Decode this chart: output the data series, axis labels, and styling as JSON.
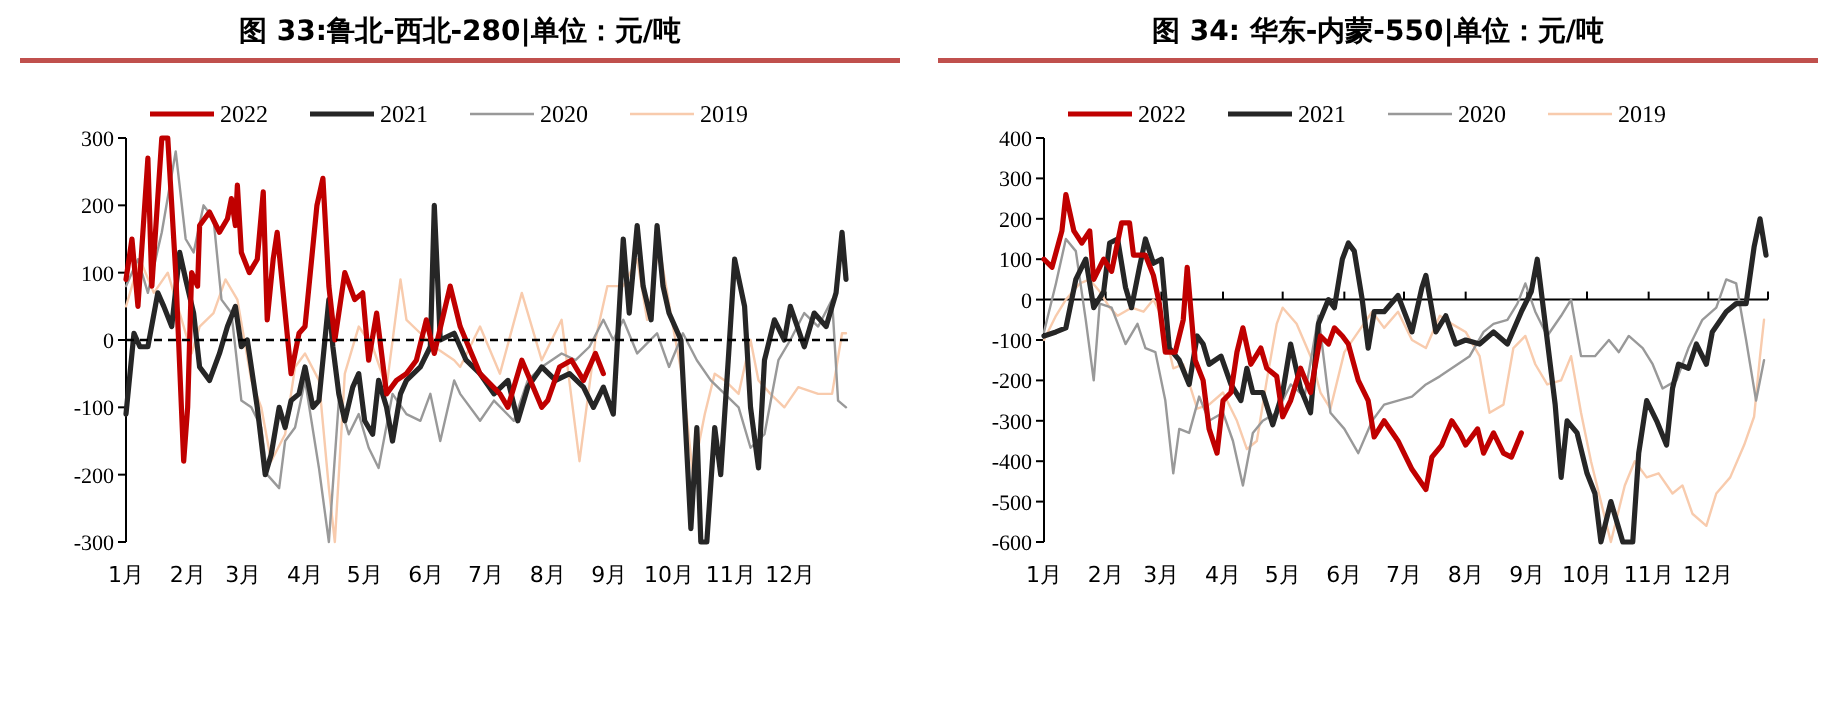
{
  "chart_data": [
    {
      "type": "line",
      "title": "图 33:鲁北-西北-280|单位：元/吨",
      "legend": "top",
      "xlim": [
        "--01-01",
        "--12-31"
      ],
      "ylim": [
        -300,
        300
      ],
      "yticks": [
        -300,
        -200,
        -100,
        0,
        100,
        200,
        300
      ],
      "xticks": [
        {
          "value": "--01-01",
          "label": "1月"
        },
        {
          "value": "--02-01",
          "label": "2月"
        },
        {
          "value": "--03-01",
          "label": "3月"
        },
        {
          "value": "--04-01",
          "label": "4月"
        },
        {
          "value": "--05-01",
          "label": "5月"
        },
        {
          "value": "--06-01",
          "label": "6月"
        },
        {
          "value": "--07-01",
          "label": "7月"
        },
        {
          "value": "--08-01",
          "label": "8月"
        },
        {
          "value": "--09-01",
          "label": "9月"
        },
        {
          "value": "--10-01",
          "label": "10月"
        },
        {
          "value": "--11-01",
          "label": "11月"
        },
        {
          "value": "--12-01",
          "label": "12月"
        }
      ],
      "ref_lines": [
        {
          "axis": "y",
          "value": 0,
          "line_style": "dashed",
          "color": "#000000"
        }
      ],
      "series": [
        {
          "name": "2022",
          "color": "#c00000",
          "x": [
            "--01-01",
            "--01-04",
            "--01-07",
            "--01-12",
            "--01-14",
            "--01-19",
            "--01-22",
            "--01-25",
            "--01-26",
            "--01-30",
            "--02-01",
            "--02-03",
            "--02-06",
            "--02-07",
            "--02-12",
            "--02-17",
            "--02-21",
            "--02-23",
            "--02-25",
            "--02-26",
            "--02-28",
            "--03-04",
            "--03-08",
            "--03-11",
            "--03-13",
            "--03-16",
            "--03-18",
            "--03-21",
            "--03-25",
            "--03-29",
            "--04-01",
            "--04-07",
            "--04-10",
            "--04-13",
            "--04-16",
            "--04-21",
            "--04-26",
            "--04-30",
            "--05-03",
            "--05-07",
            "--05-12",
            "--05-17",
            "--05-22",
            "--05-27",
            "--06-01",
            "--06-05",
            "--06-13",
            "--06-18",
            "--06-28",
            "--07-08",
            "--07-12",
            "--07-19",
            "--07-29",
            "--08-01",
            "--08-07",
            "--08-13",
            "--08-19",
            "--08-25",
            "--08-29"
          ],
          "values": [
            90,
            150,
            50,
            270,
            80,
            300,
            300,
            150,
            100,
            -180,
            -100,
            100,
            80,
            170,
            190,
            160,
            180,
            210,
            170,
            230,
            130,
            100,
            120,
            220,
            30,
            120,
            160,
            70,
            -50,
            10,
            20,
            200,
            240,
            80,
            0,
            100,
            60,
            70,
            -30,
            40,
            -80,
            -60,
            -50,
            -30,
            30,
            -20,
            80,
            20,
            -50,
            -80,
            -100,
            -30,
            -100,
            -90,
            -40,
            -30,
            -60,
            -20,
            -50
          ]
        },
        {
          "name": "2021",
          "color": "#262626",
          "x": [
            "--01-01",
            "--01-05",
            "--01-08",
            "--01-12",
            "--01-17",
            "--01-20",
            "--01-24",
            "--01-28",
            "--01-31",
            "--02-04",
            "--02-07",
            "--02-12",
            "--02-17",
            "--02-21",
            "--02-25",
            "--02-28",
            "--03-03",
            "--03-08",
            "--03-12",
            "--03-15",
            "--03-19",
            "--03-22",
            "--03-25",
            "--03-29",
            "--04-01",
            "--04-05",
            "--04-08",
            "--04-13",
            "--04-15",
            "--04-18",
            "--04-21",
            "--04-25",
            "--04-28",
            "--05-01",
            "--05-05",
            "--05-08",
            "--05-12",
            "--05-15",
            "--05-19",
            "--05-22",
            "--05-29",
            "--06-03",
            "--06-05",
            "--06-08",
            "--06-15",
            "--06-21",
            "--06-28",
            "--07-05",
            "--07-12",
            "--07-17",
            "--07-22",
            "--07-29",
            "--08-05",
            "--08-12",
            "--08-19",
            "--08-24",
            "--08-29",
            "--09-03",
            "--09-08",
            "--09-11",
            "--09-15",
            "--09-18",
            "--09-22",
            "--09-25",
            "--09-28",
            "--10-01",
            "--10-07",
            "--10-12",
            "--10-15",
            "--10-17",
            "--10-20",
            "--10-24",
            "--10-27",
            "--10-31",
            "--11-03",
            "--11-08",
            "--11-11",
            "--11-15",
            "--11-18",
            "--11-23",
            "--11-28",
            "--12-01",
            "--12-08",
            "--12-13",
            "--12-19",
            "--12-24",
            "--12-27",
            "--12-29"
          ],
          "values": [
            -110,
            10,
            -10,
            -10,
            70,
            50,
            20,
            130,
            90,
            40,
            -40,
            -60,
            -20,
            20,
            50,
            -10,
            0,
            -100,
            -200,
            -170,
            -100,
            -130,
            -90,
            -80,
            -40,
            -100,
            -90,
            60,
            -10,
            -80,
            -120,
            -70,
            -50,
            -120,
            -140,
            -60,
            -100,
            -150,
            -80,
            -60,
            -40,
            -10,
            200,
            0,
            10,
            -30,
            -50,
            -80,
            -60,
            -120,
            -70,
            -40,
            -60,
            -50,
            -70,
            -100,
            -70,
            -110,
            150,
            40,
            170,
            80,
            30,
            170,
            80,
            40,
            0,
            -280,
            -130,
            -300,
            -300,
            -130,
            -200,
            -20,
            120,
            50,
            -100,
            -190,
            -30,
            30,
            0,
            50,
            -10,
            40,
            20,
            70,
            160,
            90
          ]
        },
        {
          "name": "2020",
          "color": "#999999",
          "x": [
            "--01-01",
            "--01-07",
            "--01-12",
            "--01-19",
            "--01-26",
            "--01-31",
            "--02-04",
            "--02-09",
            "--02-14",
            "--02-18",
            "--02-23",
            "--02-28",
            "--03-05",
            "--03-10",
            "--03-13",
            "--03-19",
            "--03-22",
            "--03-27",
            "--04-01",
            "--04-08",
            "--04-13",
            "--04-18",
            "--04-23",
            "--04-28",
            "--05-03",
            "--05-08",
            "--05-15",
            "--05-22",
            "--05-29",
            "--06-03",
            "--06-08",
            "--06-15",
            "--06-18",
            "--06-28",
            "--07-05",
            "--07-15",
            "--07-22",
            "--07-29",
            "--08-08",
            "--08-15",
            "--08-22",
            "--08-29",
            "--09-03",
            "--09-08",
            "--09-15",
            "--09-25",
            "--10-01",
            "--10-08",
            "--10-15",
            "--10-22",
            "--10-29",
            "--11-05",
            "--11-11",
            "--11-18",
            "--11-25",
            "--12-01",
            "--12-08",
            "--12-15",
            "--12-22",
            "--12-25",
            "--12-29"
          ],
          "values": [
            80,
            120,
            70,
            160,
            280,
            150,
            130,
            200,
            180,
            60,
            40,
            -90,
            -100,
            -130,
            -200,
            -220,
            -150,
            -130,
            -60,
            -190,
            -300,
            -90,
            -140,
            -110,
            -160,
            -190,
            -80,
            -110,
            -120,
            -80,
            -150,
            -60,
            -80,
            -120,
            -90,
            -120,
            -60,
            -40,
            -20,
            -30,
            -10,
            30,
            0,
            30,
            -20,
            10,
            -40,
            10,
            -30,
            -60,
            -80,
            -100,
            -160,
            -140,
            -30,
            0,
            40,
            20,
            60,
            -90,
            -100
          ]
        },
        {
          "name": "2019",
          "color": "#f8cbad",
          "x": [
            "--01-01",
            "--01-08",
            "--01-15",
            "--01-22",
            "--01-29",
            "--02-03",
            "--02-07",
            "--02-14",
            "--02-20",
            "--02-26",
            "--03-05",
            "--03-10",
            "--03-15",
            "--03-22",
            "--03-27",
            "--04-01",
            "--04-08",
            "--04-13",
            "--04-16",
            "--04-21",
            "--04-28",
            "--05-05",
            "--05-12",
            "--05-19",
            "--05-22",
            "--05-29",
            "--06-05",
            "--06-15",
            "--06-18",
            "--06-28",
            "--07-08",
            "--07-19",
            "--07-29",
            "--08-08",
            "--08-17",
            "--08-25",
            "--08-31",
            "--09-08",
            "--09-15",
            "--09-20",
            "--09-26",
            "--10-03",
            "--10-08",
            "--10-13",
            "--10-19",
            "--10-24",
            "--10-29",
            "--11-05",
            "--11-11",
            "--11-15",
            "--11-21",
            "--11-28",
            "--12-05",
            "--12-15",
            "--12-22",
            "--12-27",
            "--12-29"
          ],
          "values": [
            50,
            120,
            70,
            100,
            30,
            -20,
            20,
            40,
            90,
            60,
            -60,
            -100,
            -180,
            -140,
            -40,
            -20,
            -60,
            -220,
            -300,
            -50,
            20,
            -10,
            -70,
            90,
            30,
            10,
            -10,
            -30,
            -40,
            20,
            -50,
            70,
            -30,
            30,
            -180,
            0,
            80,
            80,
            120,
            30,
            140,
            20,
            -60,
            -200,
            -110,
            -50,
            -60,
            -80,
            0,
            -60,
            -80,
            -100,
            -70,
            -80,
            -80,
            10,
            10
          ]
        }
      ]
    },
    {
      "type": "line",
      "title": "图 34: 华东-内蒙-550|单位：元/吨",
      "legend": "top",
      "xlim": [
        "--01-01",
        "--12-31"
      ],
      "ylim": [
        -600,
        400
      ],
      "yticks": [
        -600,
        -500,
        -400,
        -300,
        -200,
        -100,
        0,
        100,
        200,
        300,
        400
      ],
      "xticks": [
        {
          "value": "--01-01",
          "label": "1月"
        },
        {
          "value": "--02-01",
          "label": "2月"
        },
        {
          "value": "--03-01",
          "label": "3月"
        },
        {
          "value": "--04-01",
          "label": "4月"
        },
        {
          "value": "--05-01",
          "label": "5月"
        },
        {
          "value": "--06-01",
          "label": "6月"
        },
        {
          "value": "--07-01",
          "label": "7月"
        },
        {
          "value": "--08-01",
          "label": "8月"
        },
        {
          "value": "--09-01",
          "label": "9月"
        },
        {
          "value": "--10-01",
          "label": "10月"
        },
        {
          "value": "--11-01",
          "label": "11月"
        },
        {
          "value": "--12-01",
          "label": "12月"
        }
      ],
      "series": [
        {
          "name": "2022",
          "color": "#c00000",
          "x": [
            "--01-01",
            "--01-05",
            "--01-10",
            "--01-12",
            "--01-16",
            "--01-20",
            "--01-24",
            "--01-26",
            "--01-31",
            "--02-04",
            "--02-09",
            "--02-13",
            "--02-15",
            "--02-21",
            "--02-25",
            "--02-28",
            "--03-03",
            "--03-08",
            "--03-12",
            "--03-14",
            "--03-18",
            "--03-22",
            "--03-25",
            "--03-29",
            "--04-01",
            "--04-05",
            "--04-08",
            "--04-11",
            "--04-15",
            "--04-20",
            "--04-23",
            "--04-28",
            "--05-01",
            "--05-05",
            "--05-10",
            "--05-15",
            "--05-20",
            "--05-24",
            "--05-27",
            "--05-31",
            "--06-03",
            "--06-08",
            "--06-13",
            "--06-16",
            "--06-21",
            "--06-28",
            "--07-05",
            "--07-12",
            "--07-15",
            "--07-20",
            "--07-25",
            "--07-29",
            "--08-01",
            "--08-07",
            "--08-10",
            "--08-15",
            "--08-20",
            "--08-24",
            "--08-29"
          ],
          "values": [
            100,
            80,
            170,
            260,
            170,
            140,
            170,
            50,
            100,
            70,
            190,
            190,
            110,
            110,
            60,
            -10,
            -130,
            -130,
            -50,
            80,
            -150,
            -200,
            -320,
            -380,
            -250,
            -230,
            -130,
            -70,
            -160,
            -120,
            -170,
            -190,
            -290,
            -250,
            -170,
            -230,
            -90,
            -110,
            -70,
            -90,
            -110,
            -200,
            -250,
            -340,
            -300,
            -350,
            -420,
            -470,
            -390,
            -360,
            -300,
            -330,
            -360,
            -320,
            -380,
            -330,
            -380,
            -390,
            -330
          ]
        },
        {
          "name": "2021",
          "color": "#262626",
          "x": [
            "--01-01",
            "--01-07",
            "--01-12",
            "--01-17",
            "--01-22",
            "--01-26",
            "--01-31",
            "--02-03",
            "--02-07",
            "--02-11",
            "--02-14",
            "--02-18",
            "--02-21",
            "--02-25",
            "--03-01",
            "--03-05",
            "--03-10",
            "--03-15",
            "--03-19",
            "--03-22",
            "--03-25",
            "--03-31",
            "--04-05",
            "--04-10",
            "--04-13",
            "--04-16",
            "--04-21",
            "--04-26",
            "--05-01",
            "--05-05",
            "--05-10",
            "--05-15",
            "--05-19",
            "--05-24",
            "--05-27",
            "--05-31",
            "--06-03",
            "--06-06",
            "--06-10",
            "--06-13",
            "--06-16",
            "--06-21",
            "--06-28",
            "--07-05",
            "--07-10",
            "--07-12",
            "--07-17",
            "--07-22",
            "--07-27",
            "--08-01",
            "--08-08",
            "--08-15",
            "--08-22",
            "--08-29",
            "--09-03",
            "--09-06",
            "--09-10",
            "--09-15",
            "--09-18",
            "--09-21",
            "--09-26",
            "--10-01",
            "--10-05",
            "--10-08",
            "--10-13",
            "--10-19",
            "--10-24",
            "--10-27",
            "--10-31",
            "--11-05",
            "--11-10",
            "--11-13",
            "--11-16",
            "--11-21",
            "--11-25",
            "--11-30",
            "--12-03",
            "--12-10",
            "--12-15",
            "--12-20",
            "--12-24",
            "--12-27",
            "--12-30"
          ],
          "values": [
            -90,
            -80,
            -70,
            50,
            100,
            -20,
            20,
            140,
            150,
            30,
            -20,
            80,
            150,
            90,
            100,
            -120,
            -150,
            -210,
            -90,
            -110,
            -160,
            -140,
            -210,
            -250,
            -170,
            -230,
            -230,
            -310,
            -230,
            -110,
            -220,
            -280,
            -60,
            0,
            -20,
            100,
            140,
            120,
            0,
            -120,
            -30,
            -30,
            10,
            -80,
            30,
            60,
            -80,
            -40,
            -110,
            -100,
            -110,
            -80,
            -110,
            -30,
            20,
            100,
            -60,
            -260,
            -440,
            -300,
            -330,
            -430,
            -480,
            -600,
            -500,
            -600,
            -600,
            -380,
            -250,
            -300,
            -360,
            -220,
            -160,
            -170,
            -110,
            -160,
            -80,
            -30,
            -10,
            -10,
            130,
            200,
            110
          ]
        },
        {
          "name": "2020",
          "color": "#999999",
          "x": [
            "--01-01",
            "--01-07",
            "--01-12",
            "--01-17",
            "--01-22",
            "--01-26",
            "--01-29",
            "--02-04",
            "--02-11",
            "--02-17",
            "--02-21",
            "--02-26",
            "--03-03",
            "--03-07",
            "--03-10",
            "--03-15",
            "--03-20",
            "--03-25",
            "--04-01",
            "--04-06",
            "--04-11",
            "--04-16",
            "--04-21",
            "--04-28",
            "--05-05",
            "--05-12",
            "--05-19",
            "--05-25",
            "--06-01",
            "--06-08",
            "--06-15",
            "--06-21",
            "--06-28",
            "--07-05",
            "--07-12",
            "--07-19",
            "--07-25",
            "--08-03",
            "--08-10",
            "--08-15",
            "--08-22",
            "--08-27",
            "--08-31",
            "--09-05",
            "--09-11",
            "--09-18",
            "--09-23",
            "--09-28",
            "--10-05",
            "--10-12",
            "--10-17",
            "--10-22",
            "--10-29",
            "--11-03",
            "--11-08",
            "--11-15",
            "--11-21",
            "--11-28",
            "--12-05",
            "--12-10",
            "--12-15",
            "--12-20",
            "--12-25",
            "--12-29"
          ],
          "values": [
            -80,
            40,
            150,
            120,
            -50,
            -200,
            -10,
            -20,
            -110,
            -60,
            -120,
            -130,
            -250,
            -430,
            -320,
            -330,
            -240,
            -300,
            -280,
            -350,
            -460,
            -330,
            -300,
            -280,
            -210,
            -240,
            -40,
            -280,
            -320,
            -380,
            -300,
            -260,
            -250,
            -240,
            -210,
            -190,
            -170,
            -140,
            -80,
            -60,
            -50,
            -10,
            40,
            -30,
            -90,
            -40,
            0,
            -140,
            -140,
            -100,
            -130,
            -90,
            -120,
            -160,
            -220,
            -200,
            -120,
            -50,
            -20,
            50,
            40,
            -100,
            -250,
            -150
          ]
        },
        {
          "name": "2019",
          "color": "#f8cbad",
          "x": [
            "--01-01",
            "--01-07",
            "--01-12",
            "--01-19",
            "--01-24",
            "--01-29",
            "--02-03",
            "--02-07",
            "--02-14",
            "--02-20",
            "--02-25",
            "--03-01",
            "--03-07",
            "--03-12",
            "--03-19",
            "--03-25",
            "--04-01",
            "--04-08",
            "--04-13",
            "--04-18",
            "--04-23",
            "--04-28",
            "--05-01",
            "--05-08",
            "--05-15",
            "--05-20",
            "--05-25",
            "--06-01",
            "--06-08",
            "--06-15",
            "--06-21",
            "--06-28",
            "--07-05",
            "--07-12",
            "--07-19",
            "--07-25",
            "--08-01",
            "--08-08",
            "--08-13",
            "--08-20",
            "--08-25",
            "--08-31",
            "--09-05",
            "--09-11",
            "--09-18",
            "--09-23",
            "--09-28",
            "--10-03",
            "--10-08",
            "--10-13",
            "--10-20",
            "--10-25",
            "--10-31",
            "--11-06",
            "--11-13",
            "--11-18",
            "--11-23",
            "--11-30",
            "--12-05",
            "--12-12",
            "--12-19",
            "--12-24",
            "--12-27",
            "--12-29"
          ],
          "values": [
            -100,
            -40,
            0,
            40,
            50,
            20,
            -20,
            -40,
            -20,
            -30,
            0,
            -40,
            -170,
            -160,
            -270,
            -260,
            -230,
            -300,
            -370,
            -350,
            -200,
            -60,
            -20,
            -60,
            -140,
            -230,
            -270,
            -130,
            -80,
            -30,
            -70,
            -30,
            -100,
            -120,
            -40,
            -60,
            -80,
            -140,
            -280,
            -260,
            -120,
            -90,
            -160,
            -210,
            -200,
            -140,
            -280,
            -400,
            -500,
            -600,
            -460,
            -400,
            -440,
            -430,
            -480,
            -460,
            -530,
            -560,
            -480,
            -440,
            -360,
            -290,
            -140,
            -50
          ]
        }
      ]
    }
  ]
}
